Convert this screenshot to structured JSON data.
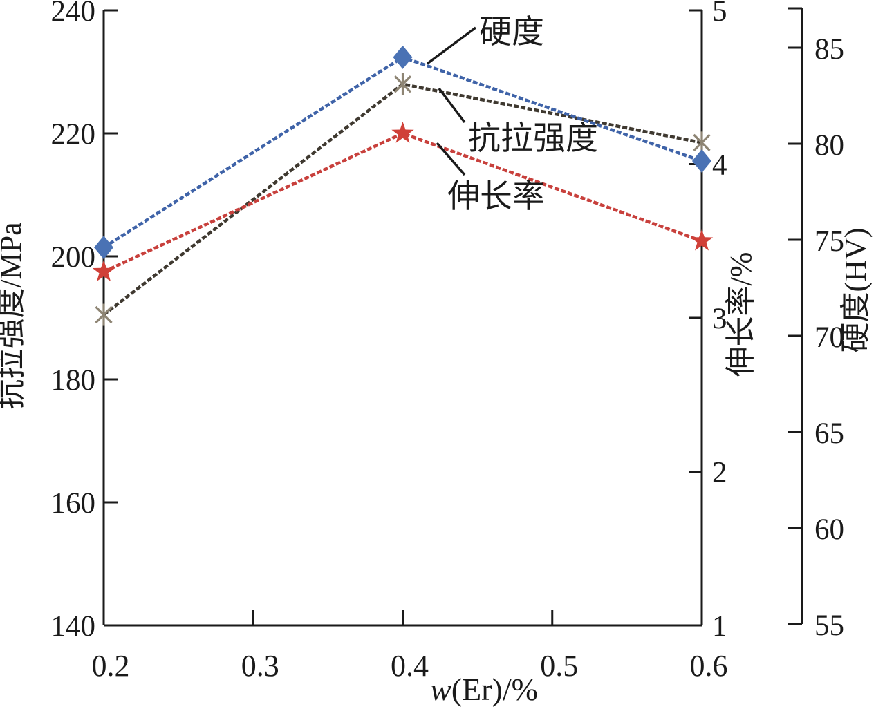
{
  "chart_data": {
    "type": "line",
    "title": "",
    "xlabel": "w(Er)/%",
    "x": [
      0.2,
      0.4,
      0.6
    ],
    "x_tick_labels": [
      "0.2",
      "0.3",
      "0.4",
      "0.5",
      "0.6"
    ],
    "grid": false,
    "legend_position": "none",
    "axes": {
      "left": {
        "label": "抗拉强度/MPa",
        "range": [
          140,
          240
        ],
        "ticks": [
          "140",
          "160",
          "180",
          "200",
          "220",
          "240"
        ]
      },
      "right1": {
        "label": "伸长率/%",
        "range": [
          1,
          5
        ],
        "ticks": [
          "1",
          "2",
          "3",
          "4",
          "5"
        ]
      },
      "right2": {
        "label": "硬度(HV)",
        "range": [
          55,
          85
        ],
        "ticks": [
          "55",
          "60",
          "65",
          "70",
          "75",
          "80",
          "85"
        ]
      }
    },
    "series": [
      {
        "id": "tensile-strength",
        "name": "抗拉强度",
        "axis": "left",
        "marker": "asterisk",
        "line_color": "#3f3930",
        "marker_color": "#8e8574",
        "values": [
          190.5,
          228,
          218.5
        ]
      },
      {
        "id": "elongation",
        "name": "伸长率",
        "axis": "right1",
        "marker": "star",
        "line_color": "#c8403c",
        "marker_color": "#d04038",
        "values": [
          3.3,
          4.2,
          3.5
        ]
      },
      {
        "id": "hardness",
        "name": "硬度",
        "axis": "right2",
        "marker": "diamond",
        "line_color": "#3f63a8",
        "marker_color": "#4a72b4",
        "values": [
          74.6,
          84.5,
          79.1
        ]
      }
    ],
    "annotations": [
      {
        "series_id": "hardness",
        "label": "硬度",
        "leader": [
          618,
          92,
          688,
          40
        ],
        "text_pos": [
          693,
          62
        ]
      },
      {
        "series_id": "tensile-strength",
        "label": "抗拉强度",
        "leader": [
          635,
          128,
          672,
          177
        ],
        "text_pos": [
          677,
          216
        ]
      },
      {
        "series_id": "elongation",
        "label": "伸长率",
        "leader": [
          632,
          207,
          672,
          253
        ],
        "text_pos": [
          647,
          300
        ]
      }
    ],
    "colors": {
      "axis": "#1a1a1a",
      "annotation": "#1a1a1a",
      "background": "#ffffff"
    }
  }
}
